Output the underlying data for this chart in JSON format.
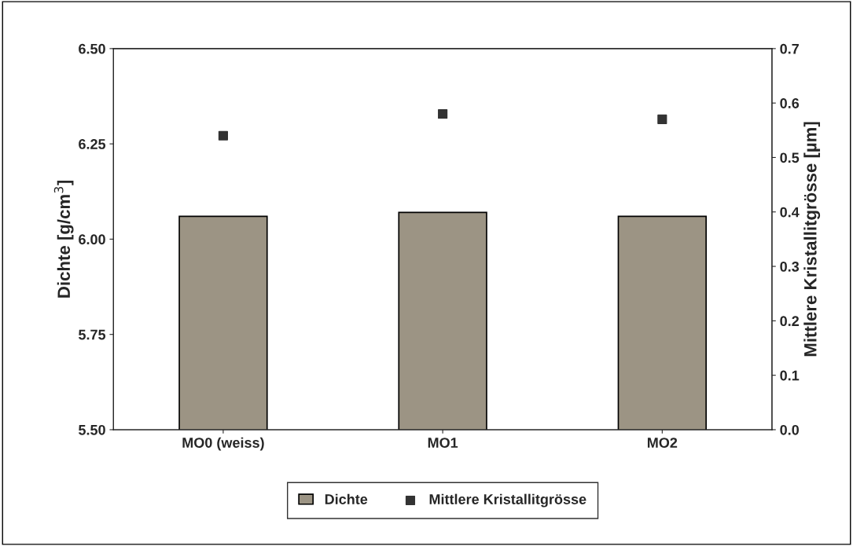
{
  "chart_data": {
    "type": "bar",
    "categories": [
      "MO0 (weiss)",
      "MO1",
      "MO2"
    ],
    "ylabel": "Dichte [g/cm$^{3}$]",
    "y2label": "Mittlere Kristallitgrösse [µm]",
    "series": [
      {
        "name": "Dichte",
        "color": "#9c9484",
        "values": [
          6.06,
          6.07,
          6.06
        ]
      },
      {
        "name": "Mittlere Kristallitgrösse",
        "type": "scatter",
        "axis": "y2",
        "color": "#333333",
        "values": [
          0.54,
          0.58,
          0.57
        ]
      }
    ],
    "ylim": [
      5.5,
      6.5
    ],
    "yticks": [
      {
        "value": 5.5,
        "label": "5.50"
      },
      {
        "value": 5.75,
        "label": "5.75"
      },
      {
        "value": 6.0,
        "label": "6.00"
      },
      {
        "value": 6.25,
        "label": "6.25"
      },
      {
        "value": 6.5,
        "label": "6.50"
      }
    ],
    "y2lim": [
      0,
      0.7
    ],
    "y2ticks": [
      {
        "value": 0,
        "label": "0.0"
      },
      {
        "value": 0.1,
        "label": "0.1"
      },
      {
        "value": 0.2,
        "label": "0.2"
      },
      {
        "value": 0.3,
        "label": "0.3"
      },
      {
        "value": 0.4,
        "label": "0.4"
      },
      {
        "value": 0.5,
        "label": "0.5"
      },
      {
        "value": 0.6,
        "label": "0.6"
      },
      {
        "value": 0.7,
        "label": "0.7"
      }
    ],
    "marker": "square",
    "legend": "bottom",
    "grid": false
  }
}
